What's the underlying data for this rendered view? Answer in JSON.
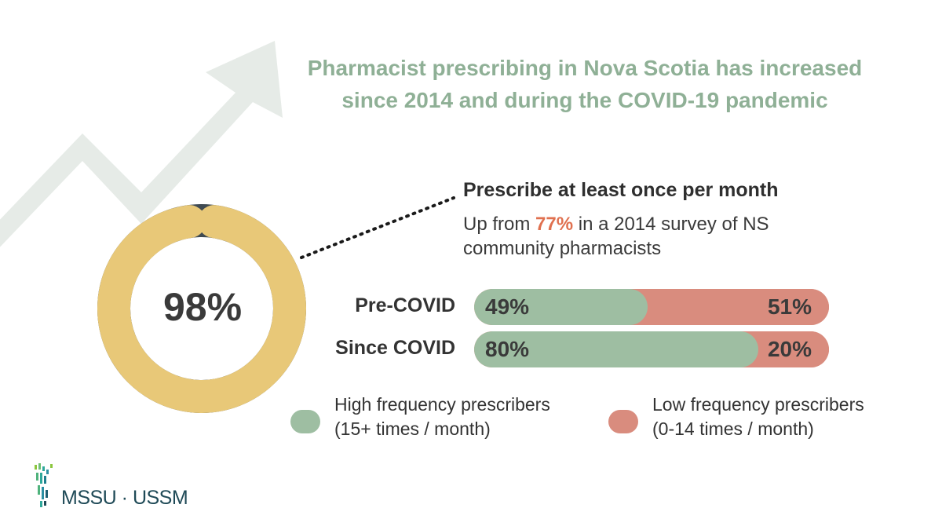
{
  "title": {
    "line1": "Pharmacist prescribing in Nova Scotia has increased",
    "line2": "since 2014 and during the COVID-19 pandemic"
  },
  "colors": {
    "title": "#8fb096",
    "high": "#9ebea2",
    "low": "#d98c7e",
    "donut_main": "#e8c878",
    "donut_rest": "#3f4a52",
    "highlight": "#e0704f",
    "arrow": "#e6ebe7"
  },
  "donut": {
    "value": 98,
    "label": "98%"
  },
  "stat": {
    "heading": "Prescribe at least once per month",
    "sub_prefix": "Up from ",
    "sub_highlight": "77%",
    "sub_suffix": " in a 2014 survey of NS community pharmacists"
  },
  "chart_data": {
    "type": "bar",
    "stacked": true,
    "orientation": "horizontal",
    "categories": [
      "Pre-COVID",
      "Since COVID"
    ],
    "series": [
      {
        "name": "High frequency prescribers (15+ times / month)",
        "values": [
          49,
          80
        ],
        "labels": [
          "49%",
          "80%"
        ]
      },
      {
        "name": "Low frequency prescribers (0-14 times / month)",
        "values": [
          51,
          20
        ],
        "labels": [
          "51%",
          "20%"
        ]
      }
    ],
    "legend": "bottom"
  },
  "legend": {
    "high_line1": "High frequency prescribers",
    "high_line2": "(15+ times / month)",
    "low_line1": "Low frequency prescribers",
    "low_line2": "(0-14 times / month)"
  },
  "logo": {
    "text": "MSSU · USSM",
    "icon": "mssu-logo-icon"
  }
}
